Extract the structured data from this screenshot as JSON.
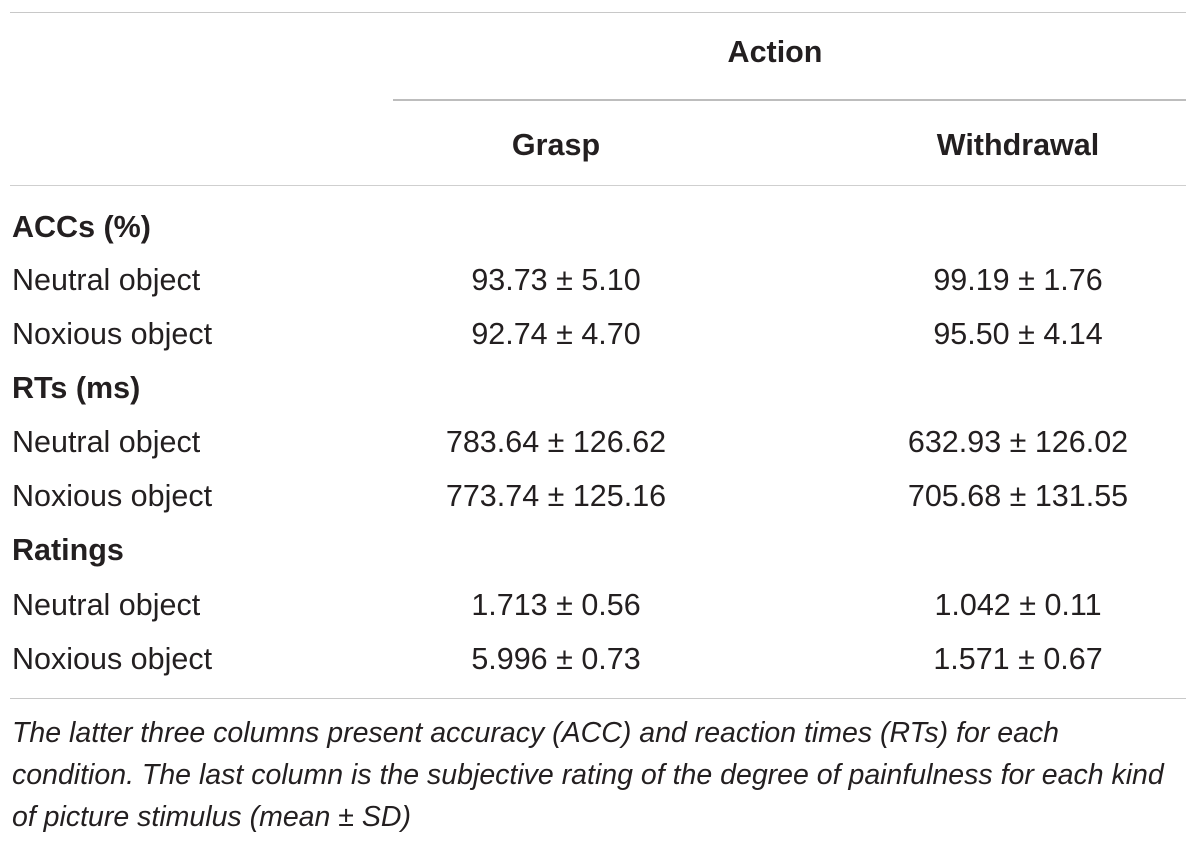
{
  "header": {
    "group_label": "Action",
    "columns": [
      "Grasp",
      "Withdrawal"
    ]
  },
  "sections": [
    {
      "title": "ACCs (%)",
      "rows": [
        {
          "label": "Neutral object",
          "grasp": "93.73 ± 5.10",
          "withdrawal": "99.19 ± 1.76"
        },
        {
          "label": "Noxious object",
          "grasp": "92.74 ± 4.70",
          "withdrawal": "95.50 ± 4.14"
        }
      ]
    },
    {
      "title": "RTs (ms)",
      "rows": [
        {
          "label": "Neutral object",
          "grasp": "783.64 ± 126.62",
          "withdrawal": "632.93 ± 126.02"
        },
        {
          "label": "Noxious object",
          "grasp": "773.74 ± 125.16",
          "withdrawal": "705.68 ± 131.55"
        }
      ]
    },
    {
      "title": "Ratings",
      "rows": [
        {
          "label": "Neutral object",
          "grasp": "1.713 ± 0.56",
          "withdrawal": "1.042 ± 0.11"
        },
        {
          "label": "Noxious object",
          "grasp": "5.996 ± 0.73",
          "withdrawal": "1.571 ± 0.67"
        }
      ]
    }
  ],
  "caption": "The latter three columns present accuracy (ACC) and reaction times (RTs) for each condition. The last column is the subjective rating of the degree of painfulness for each kind of picture stimulus (mean ± SD)"
}
